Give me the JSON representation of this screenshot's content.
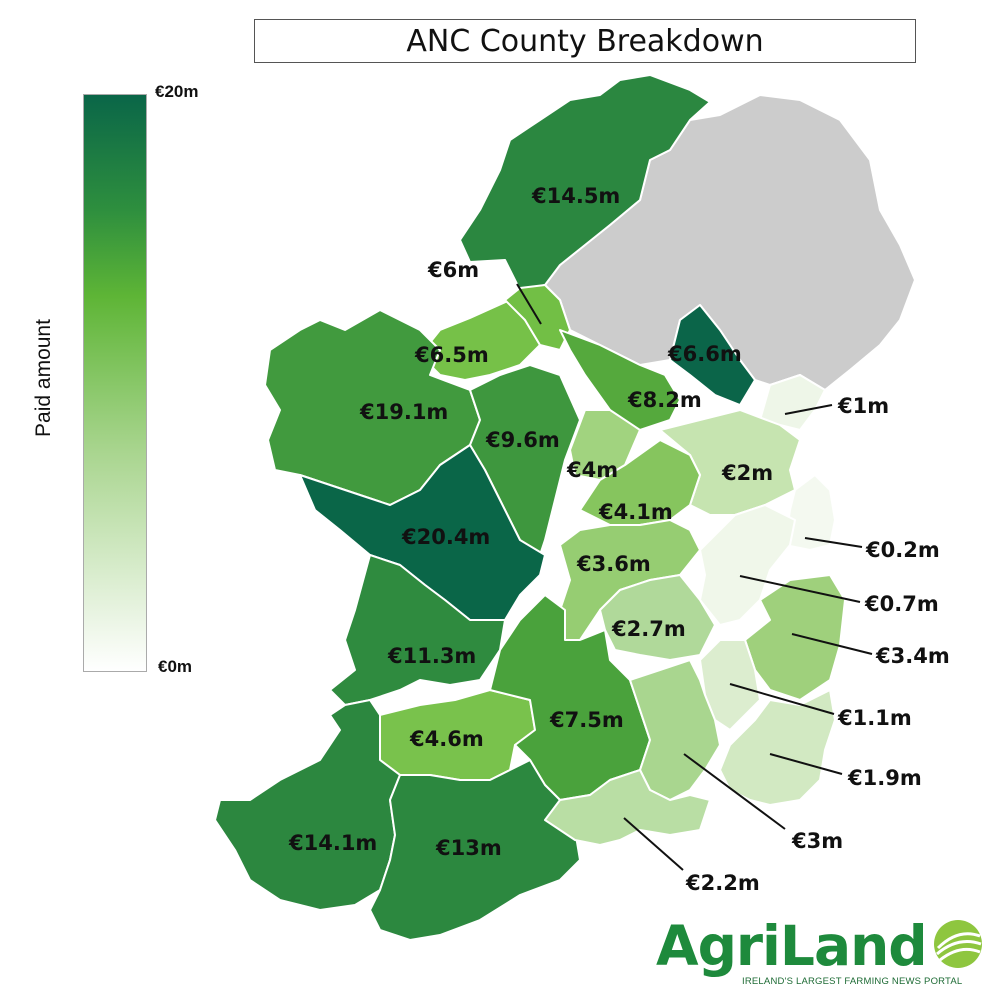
{
  "title": "ANC County Breakdown",
  "legend": {
    "label": "Paid amount",
    "max_label": "€20m",
    "min_label": "€0m",
    "max_value": 20,
    "min_value": 0,
    "color_high": "#0a6648",
    "color_low": "#ffffff"
  },
  "map_data": {
    "unit": "€m",
    "counties": [
      {
        "label": "€14.5m",
        "value": 14.5,
        "color": "#2b8740"
      },
      {
        "label": "€6m",
        "value": 6,
        "color": "#76c148"
      },
      {
        "label": "€6.5m",
        "value": 6.5,
        "color": "#72bf45"
      },
      {
        "label": "€6.6m",
        "value": 6.6,
        "color": "#55a93d"
      },
      {
        "label": "€19.1m",
        "value": 19.1,
        "color": "#0b6549"
      },
      {
        "label": "€8.2m",
        "value": 8.2,
        "color": "#419a3e"
      },
      {
        "label": "€9.6m",
        "value": 9.6,
        "color": "#3e973e"
      },
      {
        "label": "€1m",
        "value": 1,
        "color": "#eef6e8"
      },
      {
        "label": "€4m",
        "value": 4,
        "color": "#a1d37f"
      },
      {
        "label": "€2m",
        "value": 2,
        "color": "#c6e4b0"
      },
      {
        "label": "€4.1m",
        "value": 4.1,
        "color": "#86c55e"
      },
      {
        "label": "€20.4m",
        "value": 20.4,
        "color": "#0a6648"
      },
      {
        "label": "€0.2m",
        "value": 0.2,
        "color": "#f4f9f0"
      },
      {
        "label": "€3.6m",
        "value": 3.6,
        "color": "#96cd72"
      },
      {
        "label": "€0.7m",
        "value": 0.7,
        "color": "#f0f7ea"
      },
      {
        "label": "€2.7m",
        "value": 2.7,
        "color": "#b0d99a"
      },
      {
        "label": "€3.4m",
        "value": 3.4,
        "color": "#9fd07c"
      },
      {
        "label": "€11.3m",
        "value": 11.3,
        "color": "#2f8b3f"
      },
      {
        "label": "€1.1m",
        "value": 1.1,
        "color": "#dcedcf"
      },
      {
        "label": "€4.6m",
        "value": 4.6,
        "color": "#79c24c"
      },
      {
        "label": "€7.5m",
        "value": 7.5,
        "color": "#4aa23c"
      },
      {
        "label": "€1.9m",
        "value": 1.9,
        "color": "#d2e9c2"
      },
      {
        "label": "€14.1m",
        "value": 14.1,
        "color": "#2c873f"
      },
      {
        "label": "€13m",
        "value": 13,
        "color": "#2c883f"
      },
      {
        "label": "€3m",
        "value": 3,
        "color": "#a9d68f"
      },
      {
        "label": "€2.2m",
        "value": 2.2,
        "color": "#b9dea4"
      }
    ],
    "northern_ireland_color": "#cccccc"
  },
  "logo": {
    "wordmark": "AgriLand",
    "tagline": "IRELAND'S LARGEST FARMING NEWS PORTAL",
    "brand_color": "#1e8a3c"
  }
}
